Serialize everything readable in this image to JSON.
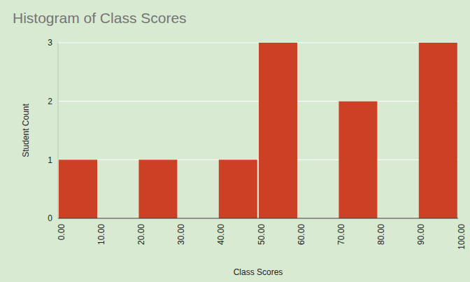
{
  "chart_data": {
    "type": "histogram",
    "title": "Histogram of Class Scores",
    "x_label": "Class Scores",
    "y_label": "Student Count",
    "bins": [
      0,
      10,
      20,
      30,
      40,
      50,
      60,
      70,
      80,
      90,
      100
    ],
    "values": [
      1,
      0,
      1,
      0,
      1,
      3,
      0,
      2,
      0,
      3
    ],
    "color": "#cc4125",
    "xlim": [
      0,
      100
    ],
    "xticks": [
      {
        "value": 0,
        "label": "0.00"
      },
      {
        "value": 10,
        "label": "10.00"
      },
      {
        "value": 20,
        "label": "20.00"
      },
      {
        "value": 30,
        "label": "30.00"
      },
      {
        "value": 40,
        "label": "40.00"
      },
      {
        "value": 50,
        "label": "50.00"
      },
      {
        "value": 60,
        "label": "60.00"
      },
      {
        "value": 70,
        "label": "70.00"
      },
      {
        "value": 80,
        "label": "80.00"
      },
      {
        "value": 90,
        "label": "90.00"
      },
      {
        "value": 100,
        "label": "100.00"
      }
    ],
    "ylim": [
      0,
      3
    ],
    "yticks": [
      0,
      1,
      2,
      3
    ],
    "grid": true
  }
}
